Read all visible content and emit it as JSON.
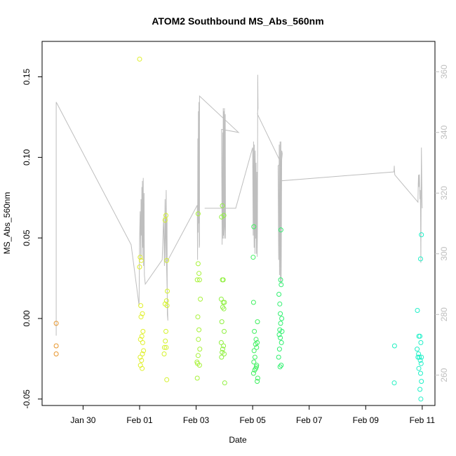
{
  "chart_data": {
    "type": "scatter",
    "title": "ATOM2 Southbound MS_Abs_560nm",
    "xlabel": "Date",
    "ylabel": "MS_Abs_560nm",
    "x_unit": "days (Jan 30 = 0, Feb 01 = 2, ... Feb 11 = 12)",
    "xlim": [
      -1.45,
      12.45
    ],
    "ylim": [
      -0.054,
      0.172
    ],
    "x_ticks": [
      {
        "value": 0,
        "label": "Jan 30"
      },
      {
        "value": 2,
        "label": "Feb 01"
      },
      {
        "value": 4,
        "label": "Feb 03"
      },
      {
        "value": 6,
        "label": "Feb 05"
      },
      {
        "value": 8,
        "label": "Feb 07"
      },
      {
        "value": 10,
        "label": "Feb 09"
      },
      {
        "value": 12,
        "label": "Feb 11"
      }
    ],
    "y_ticks": [
      {
        "value": -0.05,
        "label": "-0.05"
      },
      {
        "value": 0.0,
        "label": "0.00"
      },
      {
        "value": 0.05,
        "label": "0.05"
      },
      {
        "value": 0.1,
        "label": "0.10"
      },
      {
        "value": 0.15,
        "label": "0.15"
      }
    ],
    "y2lim": [
      250,
      370
    ],
    "y2_ticks": [
      {
        "value": 260,
        "label": "260"
      },
      {
        "value": 280,
        "label": "280"
      },
      {
        "value": 300,
        "label": "300"
      },
      {
        "value": 320,
        "label": "320"
      },
      {
        "value": 340,
        "label": "340"
      },
      {
        "value": 360,
        "label": "360"
      }
    ],
    "grid": false,
    "points": [
      {
        "x": -0.95,
        "y": -0.003,
        "color": "#e8962c"
      },
      {
        "x": -0.95,
        "y": -0.017,
        "color": "#e8962c"
      },
      {
        "x": -0.95,
        "y": -0.022,
        "color": "#e8962c"
      },
      {
        "x": 2.0,
        "y": 0.161,
        "color": "#e0f02a"
      },
      {
        "x": 2.02,
        "y": 0.038,
        "color": "#e0f02a"
      },
      {
        "x": 2.06,
        "y": 0.036,
        "color": "#e0f02a"
      },
      {
        "x": 2.0,
        "y": 0.032,
        "color": "#e0f02a"
      },
      {
        "x": 2.04,
        "y": 0.008,
        "color": "#e0f02a"
      },
      {
        "x": 2.1,
        "y": 0.003,
        "color": "#e0f02a"
      },
      {
        "x": 2.05,
        "y": 0.001,
        "color": "#e0f02a"
      },
      {
        "x": 2.12,
        "y": -0.008,
        "color": "#e0f02a"
      },
      {
        "x": 2.08,
        "y": -0.011,
        "color": "#e0f02a"
      },
      {
        "x": 2.03,
        "y": -0.013,
        "color": "#e0f02a"
      },
      {
        "x": 2.11,
        "y": -0.015,
        "color": "#e0f02a"
      },
      {
        "x": 2.14,
        "y": -0.02,
        "color": "#e0f02a"
      },
      {
        "x": 2.1,
        "y": -0.022,
        "color": "#e0f02a"
      },
      {
        "x": 2.02,
        "y": -0.024,
        "color": "#e0f02a"
      },
      {
        "x": 2.07,
        "y": -0.026,
        "color": "#e0f02a"
      },
      {
        "x": 2.03,
        "y": -0.029,
        "color": "#e0f02a"
      },
      {
        "x": 2.09,
        "y": -0.031,
        "color": "#e0f02a"
      },
      {
        "x": 2.93,
        "y": 0.064,
        "color": "#d4f22c"
      },
      {
        "x": 2.9,
        "y": 0.061,
        "color": "#d4f22c"
      },
      {
        "x": 2.96,
        "y": 0.036,
        "color": "#d4f22c"
      },
      {
        "x": 2.98,
        "y": 0.017,
        "color": "#d4f22c"
      },
      {
        "x": 2.95,
        "y": 0.011,
        "color": "#d4f22c"
      },
      {
        "x": 2.9,
        "y": 0.009,
        "color": "#d4f22c"
      },
      {
        "x": 2.97,
        "y": 0.008,
        "color": "#d4f22c"
      },
      {
        "x": 2.93,
        "y": -0.008,
        "color": "#d4f22c"
      },
      {
        "x": 2.91,
        "y": -0.014,
        "color": "#d4f22c"
      },
      {
        "x": 2.88,
        "y": -0.018,
        "color": "#d4f22c"
      },
      {
        "x": 2.94,
        "y": -0.018,
        "color": "#d4f22c"
      },
      {
        "x": 2.87,
        "y": -0.022,
        "color": "#d4f22c"
      },
      {
        "x": 2.96,
        "y": -0.038,
        "color": "#d4f22c"
      },
      {
        "x": 4.07,
        "y": 0.065,
        "color": "#a8f23a"
      },
      {
        "x": 4.07,
        "y": 0.034,
        "color": "#a8f23a"
      },
      {
        "x": 4.1,
        "y": 0.028,
        "color": "#a8f23a"
      },
      {
        "x": 4.04,
        "y": 0.024,
        "color": "#a8f23a"
      },
      {
        "x": 4.12,
        "y": 0.024,
        "color": "#a8f23a"
      },
      {
        "x": 4.15,
        "y": 0.012,
        "color": "#a8f23a"
      },
      {
        "x": 4.06,
        "y": 0.001,
        "color": "#a8f23a"
      },
      {
        "x": 4.1,
        "y": -0.007,
        "color": "#a8f23a"
      },
      {
        "x": 4.08,
        "y": -0.013,
        "color": "#a8f23a"
      },
      {
        "x": 4.13,
        "y": -0.019,
        "color": "#a8f23a"
      },
      {
        "x": 4.07,
        "y": -0.023,
        "color": "#a8f23a"
      },
      {
        "x": 4.03,
        "y": -0.027,
        "color": "#a8f23a"
      },
      {
        "x": 4.05,
        "y": -0.028,
        "color": "#a8f23a"
      },
      {
        "x": 4.12,
        "y": -0.029,
        "color": "#a8f23a"
      },
      {
        "x": 4.04,
        "y": -0.037,
        "color": "#a8f23a"
      },
      {
        "x": 4.93,
        "y": 0.07,
        "color": "#90f040"
      },
      {
        "x": 4.98,
        "y": 0.064,
        "color": "#90f040"
      },
      {
        "x": 4.9,
        "y": 0.063,
        "color": "#90f040"
      },
      {
        "x": 4.93,
        "y": 0.024,
        "color": "#90f040"
      },
      {
        "x": 4.96,
        "y": 0.024,
        "color": "#90f040"
      },
      {
        "x": 4.89,
        "y": 0.012,
        "color": "#90f040"
      },
      {
        "x": 4.96,
        "y": 0.01,
        "color": "#90f040"
      },
      {
        "x": 5.0,
        "y": 0.01,
        "color": "#90f040"
      },
      {
        "x": 4.94,
        "y": 0.007,
        "color": "#90f040"
      },
      {
        "x": 4.98,
        "y": 0.006,
        "color": "#90f040"
      },
      {
        "x": 4.91,
        "y": -0.002,
        "color": "#90f040"
      },
      {
        "x": 4.99,
        "y": -0.008,
        "color": "#90f040"
      },
      {
        "x": 4.89,
        "y": -0.015,
        "color": "#90f040"
      },
      {
        "x": 4.97,
        "y": -0.017,
        "color": "#90f040"
      },
      {
        "x": 4.94,
        "y": -0.019,
        "color": "#90f040"
      },
      {
        "x": 4.92,
        "y": -0.021,
        "color": "#90f040"
      },
      {
        "x": 4.99,
        "y": -0.022,
        "color": "#90f040"
      },
      {
        "x": 4.9,
        "y": -0.024,
        "color": "#90f040"
      },
      {
        "x": 5.01,
        "y": -0.04,
        "color": "#90f040"
      },
      {
        "x": 6.04,
        "y": 0.057,
        "color": "#40f060"
      },
      {
        "x": 6.02,
        "y": 0.038,
        "color": "#40f060"
      },
      {
        "x": 6.03,
        "y": 0.01,
        "color": "#40f060"
      },
      {
        "x": 6.17,
        "y": -0.002,
        "color": "#40f060"
      },
      {
        "x": 6.06,
        "y": -0.008,
        "color": "#40f060"
      },
      {
        "x": 6.12,
        "y": -0.013,
        "color": "#40f060"
      },
      {
        "x": 6.16,
        "y": -0.015,
        "color": "#40f060"
      },
      {
        "x": 6.1,
        "y": -0.016,
        "color": "#40f060"
      },
      {
        "x": 6.14,
        "y": -0.018,
        "color": "#40f060"
      },
      {
        "x": 6.05,
        "y": -0.02,
        "color": "#40f060"
      },
      {
        "x": 6.08,
        "y": -0.024,
        "color": "#40f060"
      },
      {
        "x": 6.04,
        "y": -0.027,
        "color": "#40f060"
      },
      {
        "x": 6.14,
        "y": -0.029,
        "color": "#40f060"
      },
      {
        "x": 6.11,
        "y": -0.031,
        "color": "#40f060"
      },
      {
        "x": 6.07,
        "y": -0.032,
        "color": "#40f060"
      },
      {
        "x": 6.13,
        "y": -0.03,
        "color": "#40f060"
      },
      {
        "x": 6.03,
        "y": -0.034,
        "color": "#40f060"
      },
      {
        "x": 6.18,
        "y": -0.037,
        "color": "#40f060"
      },
      {
        "x": 6.16,
        "y": -0.039,
        "color": "#40f060"
      },
      {
        "x": 7.0,
        "y": 0.055,
        "color": "#30f070"
      },
      {
        "x": 6.99,
        "y": 0.024,
        "color": "#30f070"
      },
      {
        "x": 7.01,
        "y": 0.021,
        "color": "#30f070"
      },
      {
        "x": 6.93,
        "y": 0.015,
        "color": "#30f070"
      },
      {
        "x": 6.96,
        "y": 0.009,
        "color": "#30f070"
      },
      {
        "x": 6.98,
        "y": 0.003,
        "color": "#30f070"
      },
      {
        "x": 7.03,
        "y": 0.0,
        "color": "#30f070"
      },
      {
        "x": 6.99,
        "y": -0.003,
        "color": "#30f070"
      },
      {
        "x": 6.96,
        "y": -0.007,
        "color": "#30f070"
      },
      {
        "x": 7.04,
        "y": -0.008,
        "color": "#30f070"
      },
      {
        "x": 6.94,
        "y": -0.01,
        "color": "#30f070"
      },
      {
        "x": 6.98,
        "y": -0.012,
        "color": "#30f070"
      },
      {
        "x": 7.02,
        "y": -0.015,
        "color": "#30f070"
      },
      {
        "x": 6.95,
        "y": -0.019,
        "color": "#30f070"
      },
      {
        "x": 6.92,
        "y": -0.024,
        "color": "#30f070"
      },
      {
        "x": 7.01,
        "y": -0.029,
        "color": "#30f070"
      },
      {
        "x": 6.97,
        "y": -0.03,
        "color": "#30f070"
      },
      {
        "x": 11.02,
        "y": -0.017,
        "color": "#20f0c0"
      },
      {
        "x": 11.01,
        "y": -0.04,
        "color": "#20f0c0"
      },
      {
        "x": 11.97,
        "y": 0.052,
        "color": "#20f0c8"
      },
      {
        "x": 11.94,
        "y": 0.037,
        "color": "#20f0c8"
      },
      {
        "x": 11.83,
        "y": 0.005,
        "color": "#20f0c8"
      },
      {
        "x": 11.88,
        "y": -0.011,
        "color": "#20f0c8"
      },
      {
        "x": 11.92,
        "y": -0.011,
        "color": "#20f0c8"
      },
      {
        "x": 11.95,
        "y": -0.015,
        "color": "#20f0c8"
      },
      {
        "x": 11.82,
        "y": -0.019,
        "color": "#20f0c8"
      },
      {
        "x": 11.87,
        "y": -0.022,
        "color": "#20f0c8"
      },
      {
        "x": 11.85,
        "y": -0.024,
        "color": "#20f0c8"
      },
      {
        "x": 11.9,
        "y": -0.024,
        "color": "#20f0c8"
      },
      {
        "x": 11.97,
        "y": -0.024,
        "color": "#20f0c8"
      },
      {
        "x": 11.93,
        "y": -0.026,
        "color": "#20f0c8"
      },
      {
        "x": 11.96,
        "y": -0.028,
        "color": "#20f0c8"
      },
      {
        "x": 11.88,
        "y": -0.031,
        "color": "#20f0c8"
      },
      {
        "x": 11.94,
        "y": -0.034,
        "color": "#20f0c8"
      },
      {
        "x": 11.97,
        "y": -0.039,
        "color": "#20f0c8"
      },
      {
        "x": 11.92,
        "y": -0.044,
        "color": "#20f0c8"
      },
      {
        "x": 11.95,
        "y": -0.05,
        "color": "#20f0c8"
      }
    ],
    "line_series": {
      "color": "#bebebe",
      "axis": "right",
      "points": [
        [
          -0.95,
          273
        ],
        [
          -0.95,
          350
        ],
        [
          1.7,
          303
        ],
        [
          1.98,
          283
        ],
        [
          2.0,
          305
        ],
        [
          2.02,
          314
        ],
        [
          2.04,
          298
        ],
        [
          2.05,
          318
        ],
        [
          2.07,
          306
        ],
        [
          2.08,
          322
        ],
        [
          2.09,
          298
        ],
        [
          2.1,
          324
        ],
        [
          2.12,
          302
        ],
        [
          2.13,
          325
        ],
        [
          2.14,
          296
        ],
        [
          2.16,
          320
        ],
        [
          2.17,
          293
        ],
        [
          2.2,
          290
        ],
        [
          2.8,
          298
        ],
        [
          2.85,
          312
        ],
        [
          2.88,
          296
        ],
        [
          2.9,
          318
        ],
        [
          2.92,
          297
        ],
        [
          2.94,
          321
        ],
        [
          2.96,
          296
        ],
        [
          2.97,
          312
        ],
        [
          2.98,
          280
        ],
        [
          3.0,
          278
        ],
        [
          2.95,
          297
        ],
        [
          4.04,
          316
        ],
        [
          4.05,
          298
        ],
        [
          4.06,
          338
        ],
        [
          4.07,
          307
        ],
        [
          4.08,
          347
        ],
        [
          4.09,
          310
        ],
        [
          4.1,
          350
        ],
        [
          4.11,
          302
        ],
        [
          4.12,
          303
        ],
        [
          4.12,
          352
        ],
        [
          5.5,
          340
        ],
        [
          4.9,
          341
        ],
        [
          4.92,
          303
        ],
        [
          4.94,
          340
        ],
        [
          4.95,
          305
        ],
        [
          4.96,
          348
        ],
        [
          4.97,
          306
        ],
        [
          4.98,
          347
        ],
        [
          4.99,
          305
        ],
        [
          5.0,
          348
        ],
        [
          5.02,
          308
        ],
        [
          5.03,
          346
        ],
        [
          5.04,
          305
        ],
        [
          4.98,
          315
        ],
        [
          4.3,
          315
        ],
        [
          5.4,
          315
        ],
        [
          6.0,
          335
        ],
        [
          6.02,
          306
        ],
        [
          6.03,
          337
        ],
        [
          6.05,
          302
        ],
        [
          6.06,
          336
        ],
        [
          6.08,
          300
        ],
        [
          6.09,
          334
        ],
        [
          6.11,
          305
        ],
        [
          6.12,
          330
        ],
        [
          6.13,
          300
        ],
        [
          6.15,
          327
        ],
        [
          6.16,
          299
        ],
        [
          6.17,
          309
        ],
        [
          6.18,
          359
        ],
        [
          6.19,
          348
        ],
        [
          6.17,
          346
        ],
        [
          7.0,
          330
        ],
        [
          6.9,
          329
        ],
        [
          6.92,
          298
        ],
        [
          6.94,
          336
        ],
        [
          6.95,
          293
        ],
        [
          6.97,
          337
        ],
        [
          6.98,
          291
        ],
        [
          7.0,
          337
        ],
        [
          7.01,
          290
        ],
        [
          7.03,
          334
        ],
        [
          7.05,
          333
        ],
        [
          6.95,
          324
        ],
        [
          11.0,
          327
        ],
        [
          11.01,
          329
        ],
        [
          11.02,
          327
        ],
        [
          11.03,
          326
        ],
        [
          11.85,
          317
        ],
        [
          11.86,
          323
        ],
        [
          11.87,
          326
        ],
        [
          11.88,
          322
        ],
        [
          11.89,
          326
        ],
        [
          11.9,
          326
        ],
        [
          11.92,
          318
        ],
        [
          11.93,
          321
        ],
        [
          11.94,
          314
        ],
        [
          11.95,
          297
        ],
        [
          11.96,
          319
        ],
        [
          11.97,
          335
        ],
        [
          11.99,
          318
        ],
        [
          12.0,
          315
        ]
      ]
    }
  }
}
